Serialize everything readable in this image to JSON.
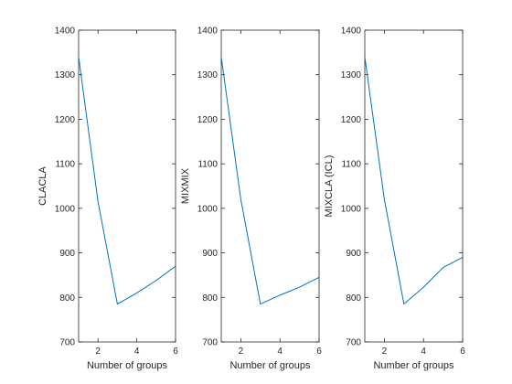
{
  "colors": {
    "series": "#0072BD",
    "axes": "#262626",
    "background": "#ffffff"
  },
  "chart_data": [
    {
      "type": "line",
      "xlabel": "Number of groups",
      "ylabel": "CLACLA",
      "xlim": [
        1,
        6
      ],
      "ylim": [
        700,
        1400
      ],
      "xticks": [
        2,
        4,
        6
      ],
      "yticks": [
        700,
        800,
        900,
        1000,
        1100,
        1200,
        1300,
        1400
      ],
      "grid": false,
      "x": [
        1,
        2,
        3,
        4,
        5,
        6
      ],
      "y": [
        1340,
        1015,
        785,
        810,
        838,
        870
      ]
    },
    {
      "type": "line",
      "xlabel": "Number of groups",
      "ylabel": "MIXMIX",
      "xlim": [
        1,
        6
      ],
      "ylim": [
        700,
        1400
      ],
      "xticks": [
        2,
        4,
        6
      ],
      "yticks": [
        700,
        800,
        900,
        1000,
        1100,
        1200,
        1300,
        1400
      ],
      "grid": false,
      "x": [
        1,
        2,
        3,
        4,
        5,
        6
      ],
      "y": [
        1340,
        1020,
        785,
        805,
        823,
        845
      ]
    },
    {
      "type": "line",
      "xlabel": "Number of groups",
      "ylabel": "MIXCLA (ICL)",
      "xlim": [
        1,
        6
      ],
      "ylim": [
        700,
        1400
      ],
      "xticks": [
        2,
        4,
        6
      ],
      "yticks": [
        700,
        800,
        900,
        1000,
        1100,
        1200,
        1300,
        1400
      ],
      "grid": false,
      "x": [
        1,
        2,
        3,
        4,
        5,
        6
      ],
      "y": [
        1340,
        1020,
        785,
        823,
        867,
        890
      ]
    }
  ]
}
